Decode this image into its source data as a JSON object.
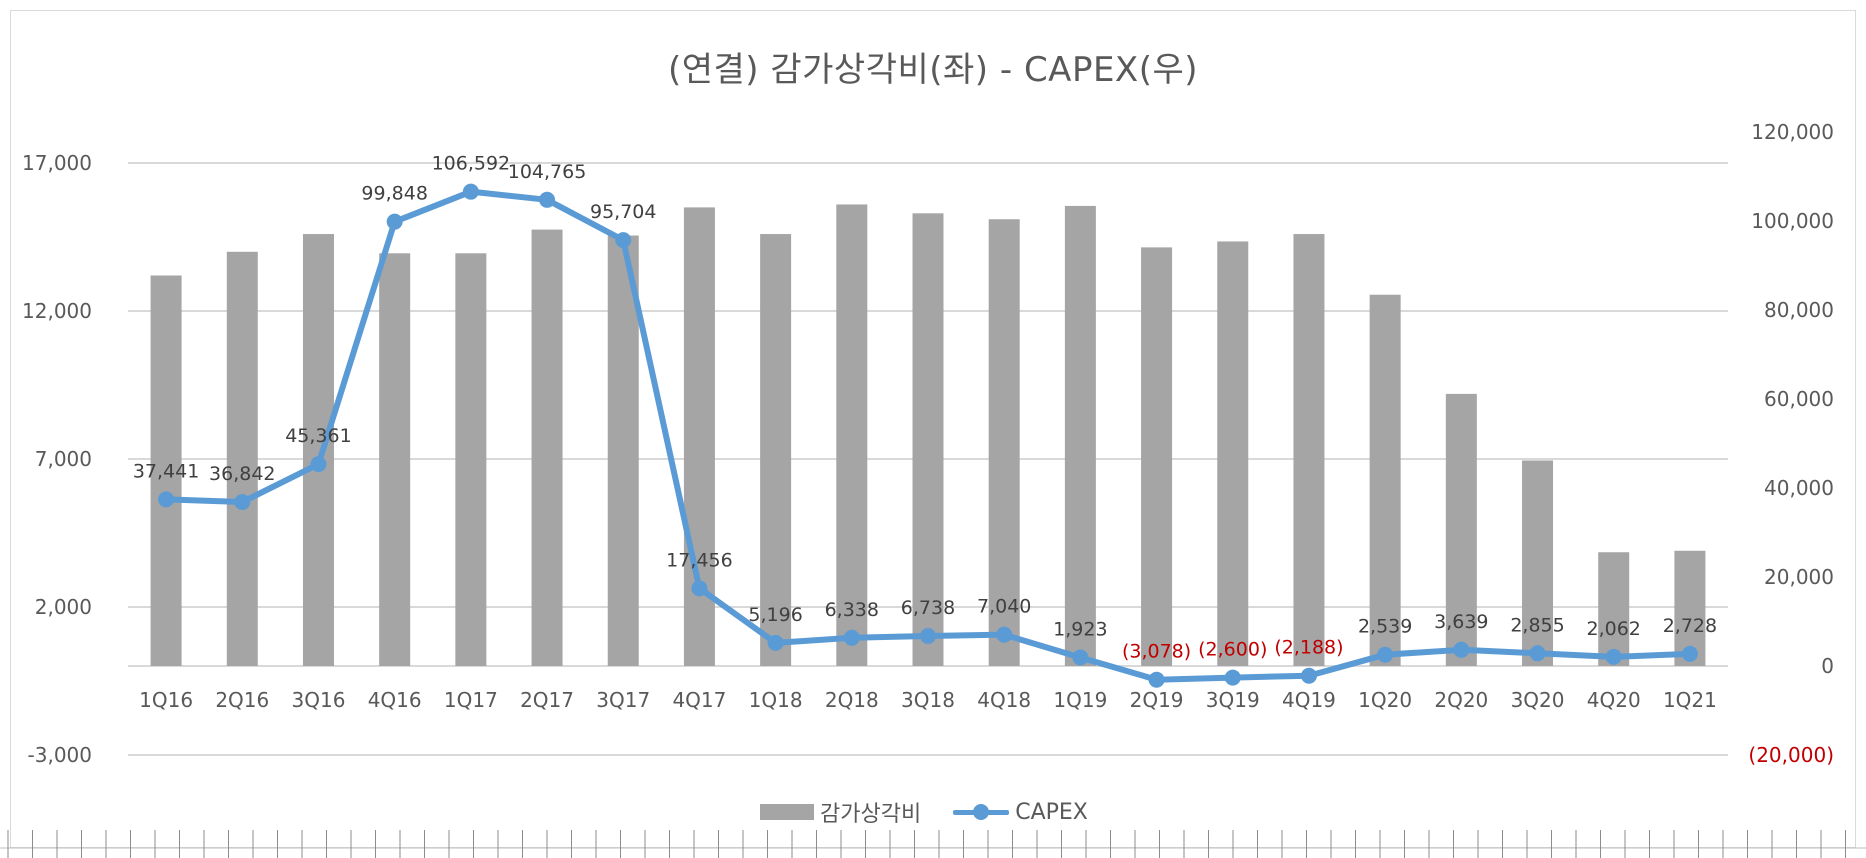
{
  "chart_data": {
    "type": "bar",
    "title": "(연결) 감가상각비(좌) - CAPEX(우)",
    "categories": [
      "1Q16",
      "2Q16",
      "3Q16",
      "4Q16",
      "1Q17",
      "2Q17",
      "3Q17",
      "4Q17",
      "1Q18",
      "2Q18",
      "3Q18",
      "4Q18",
      "1Q19",
      "2Q19",
      "3Q19",
      "4Q19",
      "1Q20",
      "2Q20",
      "3Q20",
      "4Q20",
      "1Q21"
    ],
    "series": [
      {
        "name": "감가상각비",
        "type": "bar",
        "axis": "left",
        "color": "#a5a5a5",
        "values": [
          13200,
          14000,
          14600,
          13950,
          13950,
          14750,
          14550,
          15500,
          14600,
          15600,
          15300,
          15100,
          15550,
          14150,
          14350,
          14600,
          12550,
          9200,
          6950,
          3850,
          3900
        ]
      },
      {
        "name": "CAPEX",
        "type": "line",
        "axis": "right",
        "color": "#5b9bd5",
        "values": [
          37441,
          36842,
          45361,
          99848,
          106592,
          104765,
          95704,
          17456,
          5196,
          6338,
          6738,
          7040,
          1923,
          -3078,
          -2600,
          -2188,
          2539,
          3639,
          2855,
          2062,
          2728
        ],
        "labels": [
          "37,441",
          "36,842",
          "45,361",
          "99,848",
          "106,592",
          "104,765",
          "95,704",
          "17,456",
          "5,196",
          "6,338",
          "6,738",
          "7,040",
          "1,923",
          "(3,078)",
          "(2,600)",
          "(2,188)",
          "2,539",
          "3,639",
          "2,855",
          "2,062",
          "2,728"
        ]
      }
    ],
    "left_axis": {
      "ylim": [
        -3000,
        17000
      ],
      "ticks": [
        -3000,
        2000,
        7000,
        12000,
        17000
      ],
      "tick_labels": [
        "-3,000",
        "2,000",
        "7,000",
        "12,000",
        "17,000"
      ]
    },
    "right_axis": {
      "ylim": [
        -20000,
        120000
      ],
      "ticks": [
        -20000,
        0,
        20000,
        40000,
        60000,
        80000,
        100000,
        120000
      ],
      "tick_labels": [
        "(20,000)",
        "0",
        "20,000",
        "40,000",
        "60,000",
        "80,000",
        "100,000",
        "120,000"
      ]
    },
    "grid": true,
    "legend_position": "bottom",
    "label_color": "#404040",
    "negative_color": "#c00000",
    "axis_text_color": "#595959"
  }
}
